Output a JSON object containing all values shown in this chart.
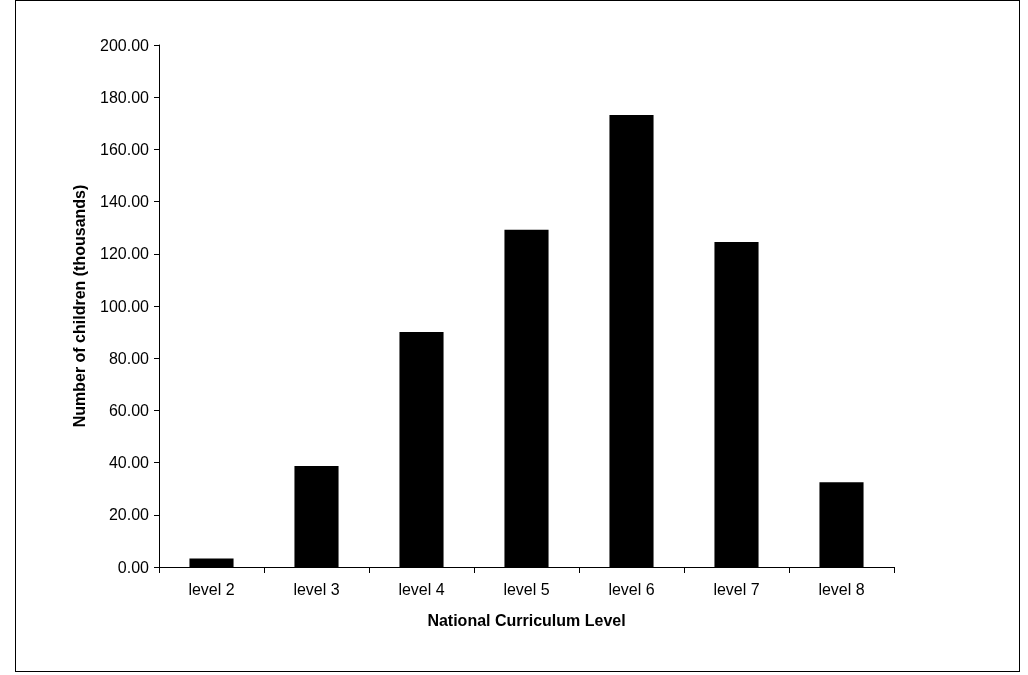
{
  "chart_data": {
    "type": "bar",
    "xlabel": "National Curriculum Level",
    "ylabel": "Number of children (thousands)",
    "categories": [
      "level 2",
      "level 3",
      "level 4",
      "level 5",
      "level 6",
      "level 7",
      "level 8"
    ],
    "values": [
      3.3,
      38.7,
      90.0,
      129.2,
      173.2,
      124.5,
      32.5
    ],
    "color": "#000000",
    "ylim": [
      0,
      200
    ],
    "yticks": [
      {
        "value": 0,
        "label": "0.00"
      },
      {
        "value": 20,
        "label": "20.00"
      },
      {
        "value": 40,
        "label": "40.00"
      },
      {
        "value": 60,
        "label": "60.00"
      },
      {
        "value": 80,
        "label": "80.00"
      },
      {
        "value": 100,
        "label": "100.00"
      },
      {
        "value": 120,
        "label": "120.00"
      },
      {
        "value": 140,
        "label": "140.00"
      },
      {
        "value": 160,
        "label": "160.00"
      },
      {
        "value": 180,
        "label": "180.00"
      },
      {
        "value": 200,
        "label": "200.00"
      }
    ],
    "grid": false
  }
}
